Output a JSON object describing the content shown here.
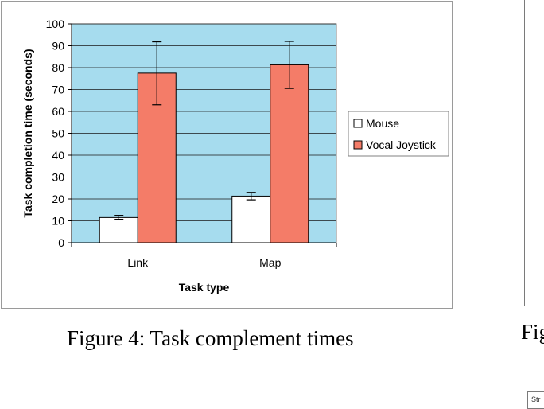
{
  "chart_data": {
    "type": "bar",
    "title": "",
    "xlabel": "Task type",
    "ylabel": "Task completion time (seconds)",
    "categories": [
      "Link",
      "Map"
    ],
    "ylim": [
      0,
      100
    ],
    "yticks": [
      0,
      10,
      20,
      30,
      40,
      50,
      60,
      70,
      80,
      90,
      100
    ],
    "grid": true,
    "legend_position": "right",
    "series": [
      {
        "name": "Mouse",
        "values": [
          11.5,
          21.3
        ],
        "error_low": [
          10.7,
          19.6
        ],
        "error_high": [
          12.5,
          23.0
        ],
        "color": "#ffffff"
      },
      {
        "name": "Vocal Joystick",
        "values": [
          77.5,
          81.3
        ],
        "error_low": [
          63.0,
          70.5
        ],
        "error_high": [
          91.8,
          92.0
        ],
        "color": "#f47c68"
      }
    ],
    "plot_background": "#a6dcee"
  },
  "caption": "Figure 4: Task complement times",
  "right_caption_fragment": "Fig",
  "right_snippet_fragment": "Str"
}
